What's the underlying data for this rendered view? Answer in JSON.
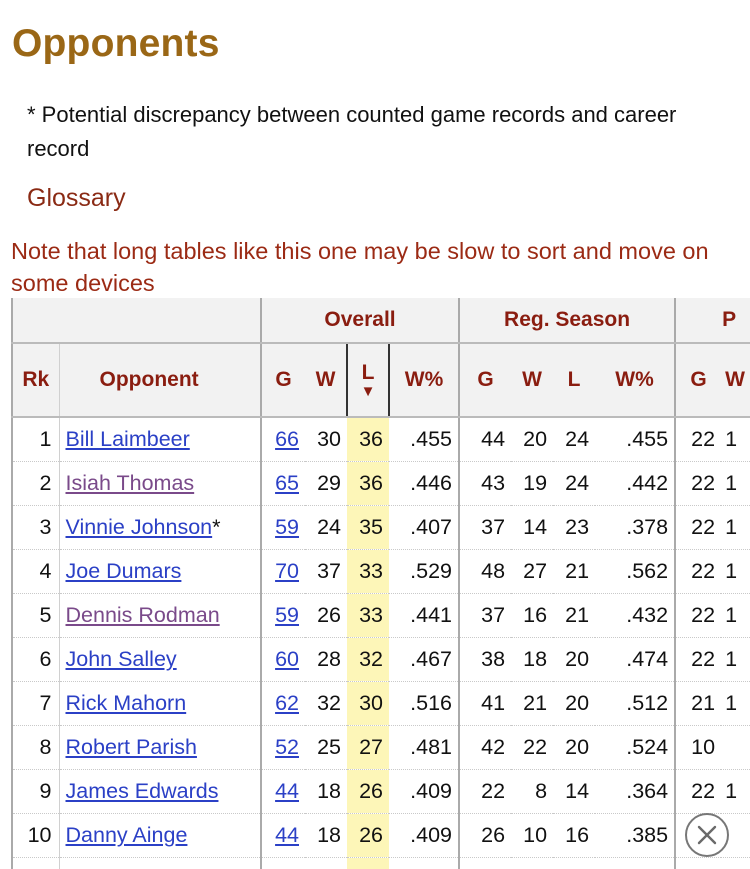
{
  "title": "Opponents",
  "note": "* Potential discrepancy between counted game records and career record",
  "glossary_label": "Glossary",
  "warning": "Note that long tables like this one may be slow to sort and move on some devices",
  "table": {
    "group_headers": [
      "Overall",
      "Reg. Season",
      "P"
    ],
    "col_headers": {
      "rk": "Rk",
      "opponent": "Opponent",
      "overall": [
        "G",
        "W",
        "L",
        "W%"
      ],
      "reg": [
        "G",
        "W",
        "L",
        "W%"
      ],
      "playoffs": [
        "G",
        "W"
      ]
    },
    "sort_indicator": "▼",
    "rows": [
      {
        "rk": "1",
        "name": "Bill Laimbeer",
        "mark": "",
        "g": "66",
        "w": "30",
        "l": "36",
        "pct": ".455",
        "rg": "44",
        "rw": "20",
        "rl": "24",
        "rpct": ".455",
        "pg": "22",
        "pw": "1"
      },
      {
        "rk": "2",
        "name": "Isiah Thomas",
        "mark": "",
        "g": "65",
        "w": "29",
        "l": "36",
        "pct": ".446",
        "rg": "43",
        "rw": "19",
        "rl": "24",
        "rpct": ".442",
        "pg": "22",
        "pw": "1"
      },
      {
        "rk": "3",
        "name": "Vinnie Johnson",
        "mark": "*",
        "g": "59",
        "w": "24",
        "l": "35",
        "pct": ".407",
        "rg": "37",
        "rw": "14",
        "rl": "23",
        "rpct": ".378",
        "pg": "22",
        "pw": "1"
      },
      {
        "rk": "4",
        "name": "Joe Dumars",
        "mark": "",
        "g": "70",
        "w": "37",
        "l": "33",
        "pct": ".529",
        "rg": "48",
        "rw": "27",
        "rl": "21",
        "rpct": ".562",
        "pg": "22",
        "pw": "1"
      },
      {
        "rk": "5",
        "name": "Dennis Rodman",
        "mark": "",
        "g": "59",
        "w": "26",
        "l": "33",
        "pct": ".441",
        "rg": "37",
        "rw": "16",
        "rl": "21",
        "rpct": ".432",
        "pg": "22",
        "pw": "1"
      },
      {
        "rk": "6",
        "name": "John Salley",
        "mark": "",
        "g": "60",
        "w": "28",
        "l": "32",
        "pct": ".467",
        "rg": "38",
        "rw": "18",
        "rl": "20",
        "rpct": ".474",
        "pg": "22",
        "pw": "1"
      },
      {
        "rk": "7",
        "name": "Rick Mahorn",
        "mark": "",
        "g": "62",
        "w": "32",
        "l": "30",
        "pct": ".516",
        "rg": "41",
        "rw": "21",
        "rl": "20",
        "rpct": ".512",
        "pg": "21",
        "pw": "1"
      },
      {
        "rk": "8",
        "name": "Robert Parish",
        "mark": "",
        "g": "52",
        "w": "25",
        "l": "27",
        "pct": ".481",
        "rg": "42",
        "rw": "22",
        "rl": "20",
        "rpct": ".524",
        "pg": "10",
        "pw": ""
      },
      {
        "rk": "9",
        "name": "James Edwards",
        "mark": "",
        "g": "44",
        "w": "18",
        "l": "26",
        "pct": ".409",
        "rg": "22",
        "rw": "8",
        "rl": "14",
        "rpct": ".364",
        "pg": "22",
        "pw": "1"
      },
      {
        "rk": "10",
        "name": "Danny Ainge",
        "mark": "",
        "g": "44",
        "w": "18",
        "l": "26",
        "pct": ".409",
        "rg": "26",
        "rw": "10",
        "rl": "16",
        "rpct": ".385",
        "pg": "",
        "pw": ""
      }
    ]
  },
  "close_icon": "close-icon",
  "colors": {
    "title": "#9a6716",
    "header_text": "#8a1d10",
    "link": "#2b40c6",
    "link_visited": "#7a4a8a",
    "sorted_column": "#fdf6b8"
  }
}
